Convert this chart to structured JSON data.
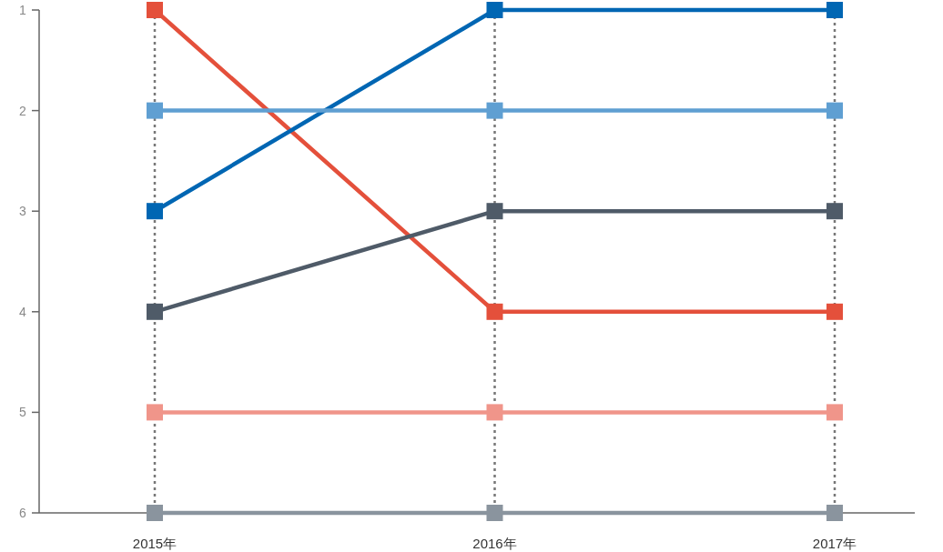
{
  "chart_data": {
    "type": "line",
    "categories": [
      "2015年",
      "2016年",
      "2017年"
    ],
    "series": [
      {
        "color": "#e4503b",
        "values": [
          1,
          4,
          4
        ]
      },
      {
        "color": "#0066b3",
        "values": [
          3,
          1,
          1
        ]
      },
      {
        "color": "#5f9fd2",
        "values": [
          2,
          2,
          2
        ]
      },
      {
        "color": "#4f5b68",
        "values": [
          4,
          3,
          3
        ]
      },
      {
        "color": "#f0958a",
        "values": [
          5,
          5,
          5
        ]
      },
      {
        "color": "#8a949e",
        "values": [
          6,
          6,
          6
        ]
      }
    ],
    "ylim": [
      6,
      1
    ],
    "yticks": [
      1,
      2,
      3,
      4,
      5,
      6
    ],
    "grid": "x",
    "marker": "square",
    "line_style": "solid"
  }
}
